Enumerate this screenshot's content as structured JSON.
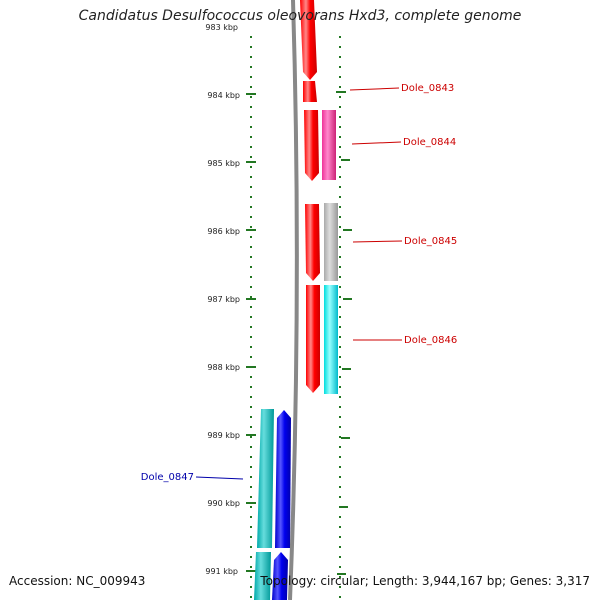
{
  "title": "Candidatus Desulfococcus oleovorans Hxd3, complete genome",
  "accession": "Accession: NC_009943",
  "topology": "Topology: circular; Length: 3,944,167 bp; Genes: 3,317",
  "ticks": [
    "983 kbp",
    "984 kbp",
    "985 kbp",
    "986 kbp",
    "987 kbp",
    "988 kbp",
    "989 kbp",
    "990 kbp",
    "991 kbp"
  ],
  "gene_labels": [
    {
      "text": "Dole_0843",
      "color": "#cc0000"
    },
    {
      "text": "Dole_0844",
      "color": "#cc0000"
    },
    {
      "text": "Dole_0845",
      "color": "#cc0000"
    },
    {
      "text": "Dole_0846",
      "color": "#cc0000"
    },
    {
      "text": "Dole_0847",
      "color": "#0000aa"
    }
  ],
  "colors": {
    "forward_strand": "#ff0000",
    "reverse_strand": "#0000ee",
    "magenta_track": "#ee3399",
    "gray_track": "#b0b0b0",
    "cyan_track": "#00e5ee",
    "teal_track": "#00bbbb",
    "tick_green": "#227722",
    "backbone": "#888888"
  }
}
